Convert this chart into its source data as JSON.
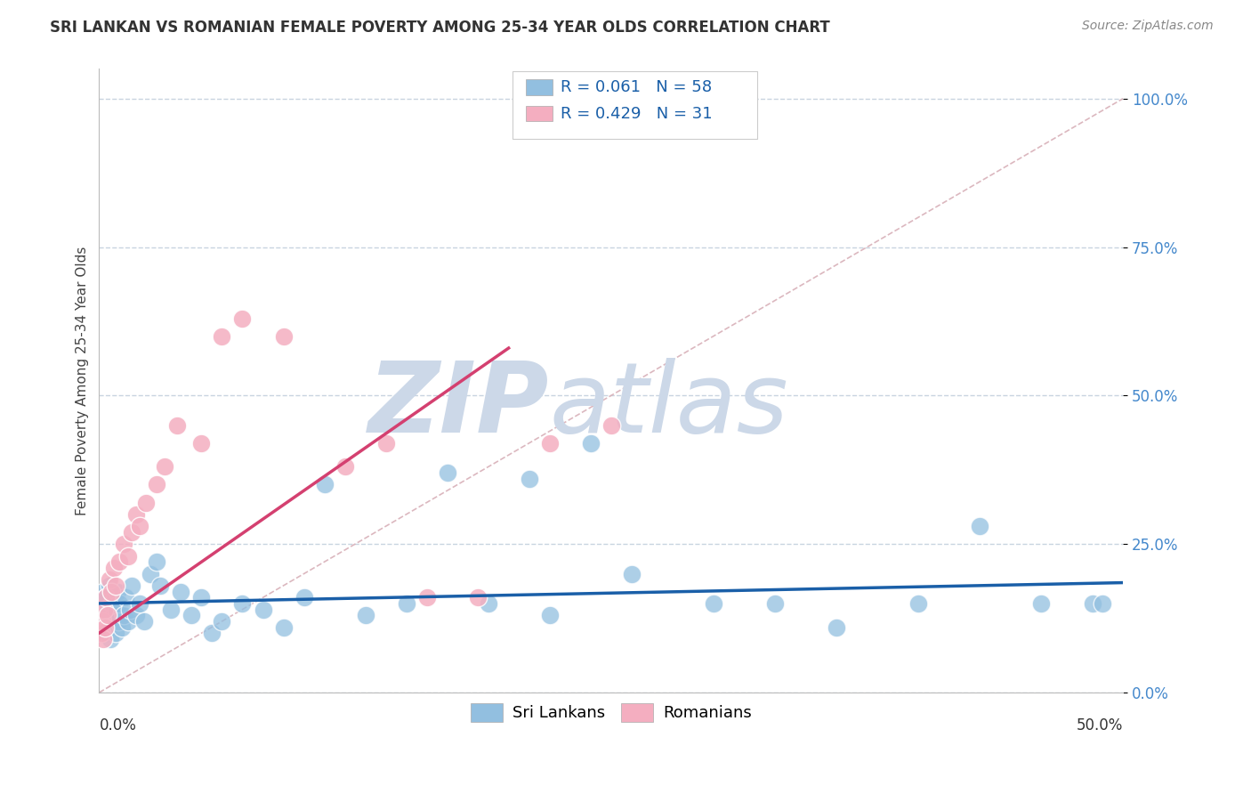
{
  "title": "SRI LANKAN VS ROMANIAN FEMALE POVERTY AMONG 25-34 YEAR OLDS CORRELATION CHART",
  "source": "Source: ZipAtlas.com",
  "ylabel": "Female Poverty Among 25-34 Year Olds",
  "ytick_labels": [
    "0.0%",
    "25.0%",
    "50.0%",
    "75.0%",
    "100.0%"
  ],
  "ytick_values": [
    0,
    25,
    50,
    75,
    100
  ],
  "xlim": [
    0,
    50
  ],
  "ylim": [
    0,
    105
  ],
  "sri_lankan_color": "#92bfe0",
  "romanian_color": "#f4aec0",
  "sri_lankan_edge": "#6aa0cc",
  "romanian_edge": "#e890a8",
  "sri_lankan_trend_color": "#1a5fa8",
  "romanian_trend_color": "#d44070",
  "diagonal_color": "#d8b0b8",
  "watermark_zip": "ZIP",
  "watermark_atlas": "atlas",
  "watermark_color": "#ccd8e8",
  "background_color": "#ffffff",
  "grid_color": "#c8d4e0",
  "sri_lankan_R": "0.061",
  "sri_lankan_N": "58",
  "romanian_R": "0.429",
  "romanian_N": "31",
  "sri_lankan_trend_x0": 0,
  "sri_lankan_trend_y0": 15.0,
  "sri_lankan_trend_x1": 50,
  "sri_lankan_trend_y1": 18.5,
  "romanian_trend_x0": 0,
  "romanian_trend_y0": 10.0,
  "romanian_trend_x1": 20,
  "romanian_trend_y1": 58.0,
  "sl_x": [
    0.1,
    0.15,
    0.2,
    0.25,
    0.3,
    0.35,
    0.4,
    0.45,
    0.5,
    0.55,
    0.6,
    0.65,
    0.7,
    0.75,
    0.8,
    0.85,
    0.9,
    0.95,
    1.0,
    1.1,
    1.2,
    1.3,
    1.4,
    1.5,
    1.6,
    1.8,
    2.0,
    2.2,
    2.5,
    2.8,
    3.0,
    3.5,
    4.0,
    4.5,
    5.0,
    5.5,
    6.0,
    7.0,
    8.0,
    9.0,
    10.0,
    11.0,
    13.0,
    15.0,
    17.0,
    19.0,
    21.0,
    22.0,
    24.0,
    26.0,
    30.0,
    33.0,
    36.0,
    40.0,
    43.0,
    46.0,
    48.5,
    49.0
  ],
  "sl_y": [
    15,
    12,
    17,
    10,
    13,
    16,
    14,
    11,
    18,
    9,
    12,
    15,
    13,
    16,
    10,
    14,
    17,
    12,
    15,
    11,
    13,
    16,
    12,
    14,
    18,
    13,
    15,
    12,
    20,
    22,
    18,
    14,
    17,
    13,
    16,
    10,
    12,
    15,
    14,
    11,
    16,
    35,
    13,
    15,
    37,
    15,
    36,
    13,
    42,
    20,
    15,
    15,
    11,
    15,
    28,
    15,
    15,
    15
  ],
  "ro_x": [
    0.1,
    0.15,
    0.2,
    0.25,
    0.3,
    0.35,
    0.4,
    0.5,
    0.6,
    0.7,
    0.8,
    1.0,
    1.2,
    1.4,
    1.6,
    1.8,
    2.0,
    2.3,
    2.8,
    3.2,
    3.8,
    5.0,
    6.0,
    7.0,
    9.0,
    12.0,
    14.0,
    16.0,
    18.5,
    22.0,
    25.0
  ],
  "ro_y": [
    10,
    12,
    9,
    14,
    11,
    16,
    13,
    19,
    17,
    21,
    18,
    22,
    25,
    23,
    27,
    30,
    28,
    32,
    35,
    38,
    45,
    42,
    60,
    63,
    60,
    38,
    42,
    16,
    16,
    42,
    45
  ]
}
